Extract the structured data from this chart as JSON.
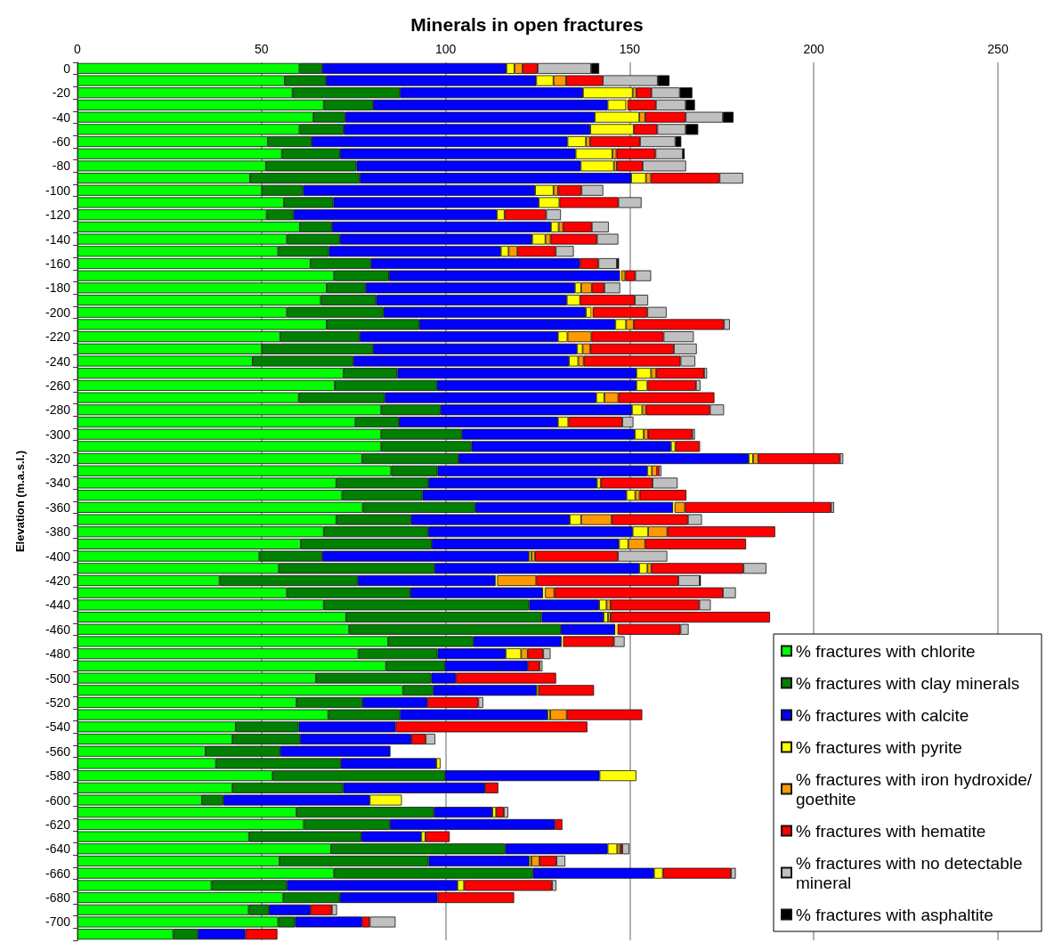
{
  "chart_data": {
    "type": "bar",
    "orientation": "horizontal",
    "stacked": true,
    "title": "Minerals in open fractures",
    "ylabel": "Elevation (m.a.s.l.)",
    "categories": [
      "0",
      null,
      "-20",
      null,
      "-40",
      null,
      "-60",
      null,
      "-80",
      null,
      "-100",
      null,
      "-120",
      null,
      "-140",
      null,
      "-160",
      null,
      "-180",
      null,
      "-200",
      null,
      "-220",
      null,
      "-240",
      null,
      "-260",
      null,
      "-280",
      null,
      "-300",
      null,
      "-320",
      null,
      "-340",
      null,
      "-360",
      null,
      "-380",
      null,
      "-400",
      null,
      "-420",
      null,
      "-440",
      null,
      "-460",
      null,
      "-480",
      null,
      "-500",
      null,
      "-520",
      null,
      "-540",
      null,
      "-560",
      null,
      "-580",
      null,
      "-600",
      null,
      "-620",
      null,
      "-640",
      null,
      "-660",
      null,
      "-680",
      null,
      "-700",
      null
    ],
    "xlim": [
      0,
      250
    ],
    "xticks": [
      0,
      50,
      100,
      150,
      200,
      250
    ],
    "grid": "x",
    "legend": "bottom right",
    "series": [
      {
        "name": "% fractures with chlorite",
        "color": "#00ff00",
        "values": [
          60.3,
          56.3,
          58.4,
          66.9,
          64.1,
          60.3,
          51.7,
          55.5,
          51.2,
          46.9,
          50.1,
          56.1,
          51.4,
          60.4,
          56.9,
          54.5,
          63.3,
          69.7,
          67.7,
          66.1,
          56.9,
          67.7,
          55.1,
          50.1,
          47.6,
          72.3,
          69.9,
          60.1,
          82.5,
          75.5,
          82.5,
          82.5,
          77.3,
          85.2,
          70.3,
          71.9,
          77.5,
          70.3,
          66.9,
          60.7,
          49.4,
          54.7,
          38.6,
          56.9,
          66.9,
          73,
          73.8,
          84.4,
          76.3,
          83.8,
          64.8,
          88.4,
          59.5,
          68.1,
          43,
          42.1,
          34.8,
          37.6,
          53,
          42.1,
          33.8,
          59.5,
          61.5,
          46.6,
          68.9,
          54.9,
          69.7,
          36.4,
          55.9,
          46.5,
          54.5,
          26
        ]
      },
      {
        "name": "% fractures with clay minerals",
        "color": "#008000",
        "values": [
          6.2,
          11.2,
          29.2,
          13.4,
          8.6,
          12,
          11.9,
          15.8,
          24.6,
          29.8,
          11.2,
          13.4,
          7.3,
          8.7,
          14.4,
          13.8,
          16.4,
          14.9,
          10.6,
          15,
          26.2,
          25.1,
          21.6,
          30.2,
          27.3,
          14.6,
          27.7,
          23.4,
          16.1,
          11.8,
          21.9,
          24.5,
          26.2,
          12.6,
          25,
          21.8,
          30.5,
          20.3,
          28.3,
          35.5,
          17.1,
          42.3,
          37.5,
          33.5,
          55.8,
          53.1,
          57.5,
          23.1,
          21.5,
          16,
          31.3,
          8.2,
          17.9,
          19.5,
          17.1,
          18.4,
          20.3,
          33.9,
          46.8,
          30.1,
          5.8,
          37.3,
          23.4,
          30.5,
          47.3,
          40.5,
          54,
          20.5,
          15.4,
          5.5,
          4.6,
          6.7
        ]
      },
      {
        "name": "% fractures with calcite",
        "color": "#0000ff",
        "values": [
          50,
          57.1,
          49.7,
          63.7,
          67.8,
          67,
          69.5,
          64,
          60.9,
          73.7,
          63,
          55.8,
          55.2,
          59.5,
          52.2,
          46.7,
          56.8,
          62.8,
          56.8,
          51.8,
          55,
          53.3,
          53.8,
          55.4,
          58.6,
          64.9,
          54.2,
          57.4,
          52,
          43.2,
          47,
          54.2,
          78.8,
          57,
          45.8,
          55.4,
          53.8,
          43.1,
          55.6,
          50.9,
          56.1,
          55.6,
          37.5,
          36.1,
          19,
          16.8,
          14.8,
          24,
          18.5,
          22.5,
          6.7,
          28.1,
          17.6,
          40.1,
          26.3,
          30.2,
          29.9,
          26,
          42,
          38.5,
          39.8,
          15.9,
          44.8,
          16.3,
          27.8,
          27.3,
          32.9,
          46.3,
          26.5,
          11.3,
          18.2,
          12.9
        ]
      },
      {
        "name": "% fractures with pyrite",
        "color": "#ffff00",
        "values": [
          2.2,
          4.7,
          13.5,
          5,
          12.1,
          11.8,
          5,
          10,
          9,
          4,
          5,
          5.6,
          2.1,
          2.1,
          3.6,
          2.1,
          0,
          0.4,
          1.7,
          3.6,
          1.5,
          2.9,
          2.6,
          1.5,
          2.5,
          4,
          3,
          2.2,
          2.8,
          2.8,
          2.4,
          1.2,
          1.2,
          1.2,
          1,
          2.4,
          0.4,
          3.1,
          4.2,
          2.5,
          0.7,
          2.2,
          0.4,
          0.5,
          2,
          1.2,
          0.4,
          0.4,
          4.2,
          0,
          0,
          0.6,
          0,
          0.7,
          0,
          0,
          0,
          1.1,
          10,
          0,
          8.7,
          1,
          0,
          1.1,
          2.6,
          0.6,
          2.4,
          1.8,
          0,
          0,
          0,
          0
        ]
      },
      {
        "name": "% fractures with iron hydroxide/goethite",
        "color": "#ff9900",
        "values": [
          2.2,
          3.4,
          1,
          0.5,
          1.6,
          0,
          1.1,
          1.1,
          0.8,
          1.4,
          1.2,
          0,
          0,
          1.2,
          1.4,
          2.4,
          0,
          1,
          2.9,
          0,
          0.4,
          2.1,
          6.5,
          2.1,
          1.5,
          1.4,
          0,
          3.8,
          1,
          0,
          1.2,
          0,
          1.4,
          1.4,
          0,
          1.2,
          2.8,
          8.3,
          5.2,
          4.6,
          1,
          1.1,
          10.6,
          2.5,
          1.1,
          0.7,
          0.3,
          0,
          1.8,
          0,
          0,
          0,
          0,
          4.5,
          0,
          0,
          0,
          0,
          0,
          0,
          0,
          0,
          0,
          0,
          0.8,
          2.2,
          0,
          0,
          0,
          0,
          0,
          0
        ]
      },
      {
        "name": "% fractures with hematite",
        "color": "#ff0000",
        "values": [
          4.1,
          10,
          4.1,
          7.6,
          11,
          6.4,
          13.6,
          10.6,
          7,
          18.6,
          6.4,
          16,
          11.3,
          7.8,
          12.6,
          10.4,
          5,
          2.7,
          3.4,
          14.9,
          14.8,
          24.5,
          19.6,
          22.7,
          26.3,
          13,
          13.2,
          26.1,
          17.4,
          14.7,
          12,
          6.6,
          22.2,
          0.5,
          14.1,
          12.7,
          39.7,
          20.7,
          29.3,
          27.4,
          22.5,
          25,
          38.6,
          45.8,
          24.1,
          43.3,
          17,
          13.8,
          4.2,
          3.2,
          27.2,
          15,
          13.9,
          20.5,
          52.1,
          3.9,
          0,
          0,
          0,
          3.6,
          0,
          2.1,
          2,
          6.6,
          0.6,
          4.6,
          18.5,
          23.9,
          20.8,
          5.8,
          2.1,
          8.7
        ]
      },
      {
        "name": "% fractures with no detectable mineral",
        "color": "#c0c0c0",
        "values": [
          14.5,
          14.9,
          7.7,
          8.1,
          10.1,
          7.7,
          9.6,
          7.4,
          11.8,
          6.4,
          5.9,
          6.3,
          4,
          4.6,
          5.8,
          4.9,
          5,
          4.3,
          4.3,
          3.6,
          5.2,
          1.6,
          8.2,
          6.2,
          4,
          0.8,
          1.2,
          null,
          3.8,
          3,
          0.7,
          0.4,
          0.9,
          0.7,
          6.8,
          null,
          0.8,
          3.8,
          null,
          0,
          13.4,
          6.2,
          5.8,
          3.5,
          3.1,
          0,
          2.2,
          2.9,
          2,
          0.8,
          0,
          0,
          1.3,
          0,
          0,
          2.6,
          0,
          0,
          0,
          0,
          0,
          1.2,
          0,
          0,
          1.9,
          2.4,
          1.3,
          1.2,
          0,
          1.4,
          7,
          0
        ]
      },
      {
        "name": "% fractures with asphaltite",
        "color": "#000000",
        "values": [
          2.2,
          3.2,
          3.4,
          2.5,
          2.9,
          3.4,
          1.6,
          0.5,
          0,
          0,
          0,
          0,
          0,
          0,
          0,
          0,
          0.6,
          0,
          0,
          0,
          0,
          0,
          0,
          0,
          0,
          0,
          0,
          0,
          0,
          0,
          0,
          0,
          0,
          0,
          0,
          0,
          0,
          0,
          0,
          0,
          0,
          0,
          0.3,
          0,
          0,
          0,
          0,
          0,
          0,
          0,
          0,
          0,
          0,
          0,
          0,
          0,
          0,
          0,
          0,
          0,
          0,
          0,
          0,
          0,
          0,
          0,
          0,
          0,
          0,
          0,
          0,
          0
        ]
      }
    ]
  }
}
